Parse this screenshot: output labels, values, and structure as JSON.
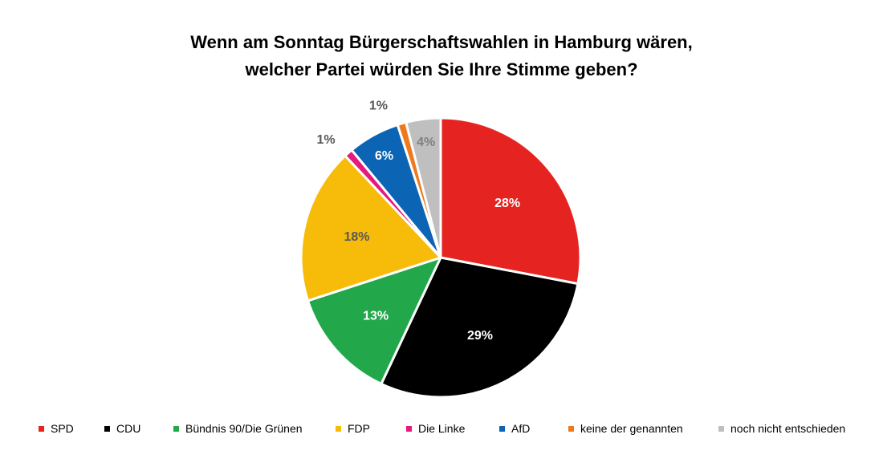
{
  "chart_data": {
    "type": "pie",
    "title_lines": [
      "Wenn am Sonntag Bürgerschaftswahlen in Hamburg wären,",
      "welcher Partei würden Sie Ihre Stimme geben?"
    ],
    "categories": [
      "SPD",
      "CDU",
      "Bündnis 90/Die Grünen",
      "FDP",
      "Die Linke",
      "AfD",
      "keine der genannten",
      "noch nicht entschieden"
    ],
    "values": [
      28,
      29,
      13,
      18,
      1,
      6,
      1,
      4
    ],
    "labels": [
      "28%",
      "29%",
      "13%",
      "18%",
      "1%",
      "6%",
      "1%",
      "4%"
    ],
    "colors": [
      "#e52421",
      "#000000",
      "#22a84b",
      "#f7bb0a",
      "#e5197e",
      "#0c64b4",
      "#ee7a1f",
      "#bfbfbf"
    ],
    "label_colors": [
      "#ffffff",
      "#ffffff",
      "#ffffff",
      "#595959",
      "#595959",
      "#ffffff",
      "#595959",
      "#7f7f7f"
    ],
    "legend_position": "bottom"
  }
}
